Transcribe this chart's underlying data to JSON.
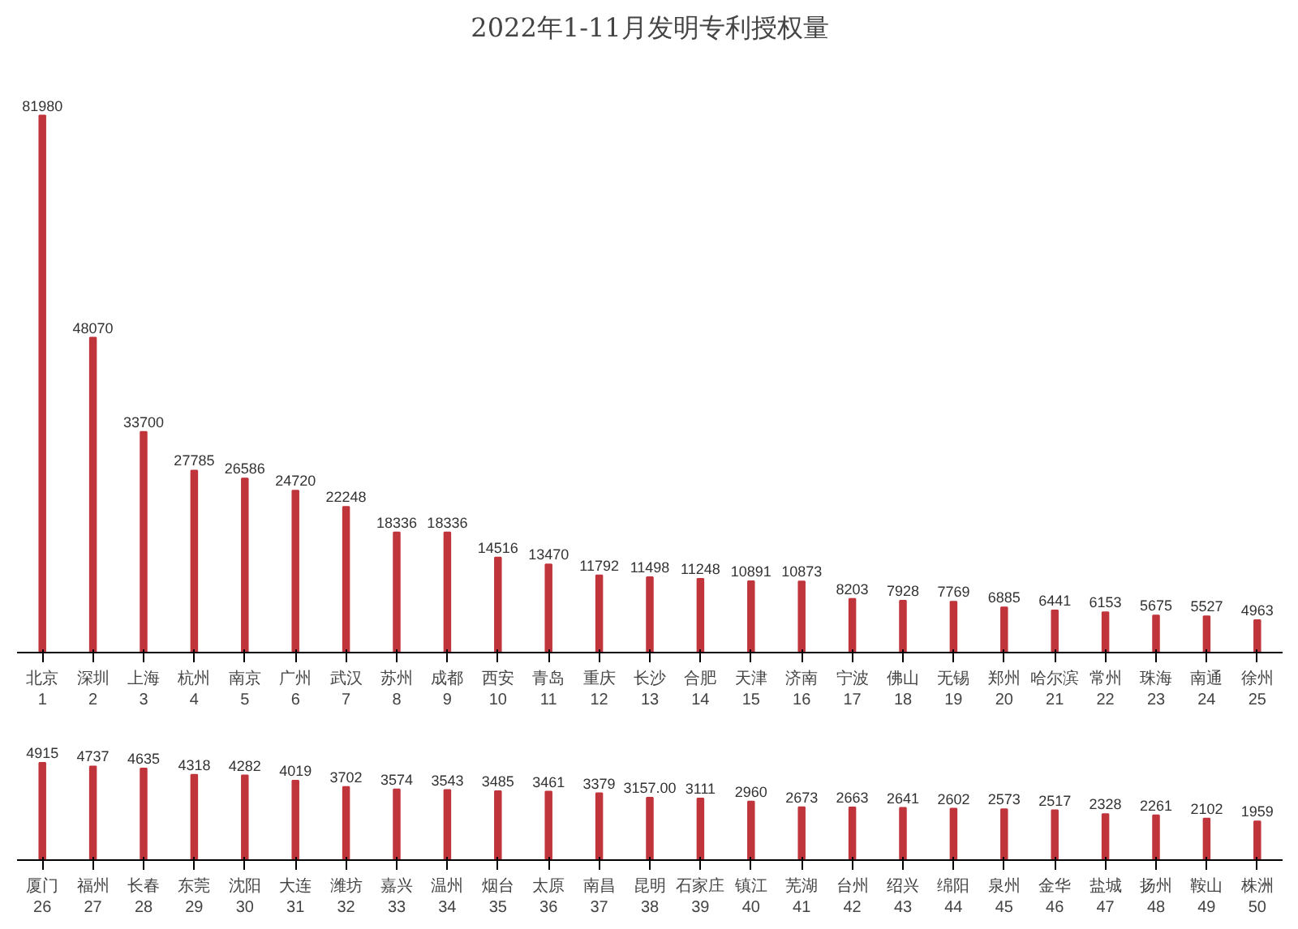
{
  "chart_data": [
    {
      "type": "bar",
      "title": "2022年1-11月发明专利授权量",
      "categories": [
        "北京\n1",
        "深圳\n2",
        "上海\n3",
        "杭州\n4",
        "南京\n5",
        "广州\n6",
        "武汉\n7",
        "苏州\n8",
        "成都\n9",
        "西安\n10",
        "青岛\n11",
        "重庆\n12",
        "长沙\n13",
        "合肥\n14",
        "天津\n15",
        "济南\n16",
        "宁波\n17",
        "佛山\n18",
        "无锡\n19",
        "郑州\n20",
        "哈尔滨\n21",
        "常州\n22",
        "珠海\n23",
        "南通\n24",
        "徐州\n25"
      ],
      "values": [
        81980,
        48070,
        33700,
        27785,
        26586,
        24720,
        22248,
        18336,
        18336,
        14516,
        13470,
        11792,
        11498,
        11248,
        10891,
        10873,
        8203,
        7928,
        7769,
        6885,
        6441,
        6153,
        5675,
        5527,
        4963
      ],
      "color": "#c0353b",
      "data_labels": true
    },
    {
      "type": "bar",
      "categories": [
        "厦门\n26",
        "福州\n27",
        "长春\n28",
        "东莞\n29",
        "沈阳\n30",
        "大连\n31",
        "潍坊\n32",
        "嘉兴\n33",
        "温州\n34",
        "烟台\n35",
        "太原\n36",
        "南昌\n37",
        "昆明\n38",
        "石家庄\n39",
        "镇江\n40",
        "芜湖\n41",
        "台州\n42",
        "绍兴\n43",
        "绵阳\n44",
        "泉州\n45",
        "金华\n46",
        "盐城\n47",
        "扬州\n48",
        "鞍山\n49",
        "株洲\n50"
      ],
      "values": [
        4915,
        4737,
        4635,
        4318,
        4282,
        4019,
        3702,
        3574,
        3543,
        3485,
        3461,
        3379,
        3157,
        3111,
        2960,
        2673,
        2663,
        2641,
        2602,
        2573,
        2517,
        2328,
        2261,
        2102,
        1959
      ],
      "value_labels": [
        "4915",
        "4737",
        "4635",
        "4318",
        "4282",
        "4019",
        "3702",
        "3574",
        "3543",
        "3485",
        "3461",
        "3379",
        "3157.00",
        "3111",
        "2960",
        "2673",
        "2663",
        "2641",
        "2602",
        "2573",
        "2517",
        "2328",
        "2261",
        "2102",
        "1959"
      ],
      "color": "#c0353b"
    }
  ]
}
